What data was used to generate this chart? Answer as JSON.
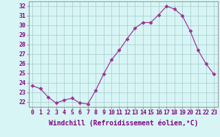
{
  "x": [
    0,
    1,
    2,
    3,
    4,
    5,
    6,
    7,
    8,
    9,
    10,
    11,
    12,
    13,
    14,
    15,
    16,
    17,
    18,
    19,
    20,
    21,
    22,
    23
  ],
  "y": [
    23.7,
    23.4,
    22.5,
    21.9,
    22.2,
    22.4,
    21.9,
    21.8,
    23.2,
    24.9,
    26.4,
    27.4,
    28.6,
    29.7,
    30.3,
    30.3,
    31.1,
    32.0,
    31.7,
    31.0,
    29.4,
    27.4,
    26.0,
    24.9
  ],
  "xlabel": "Windchill (Refroidissement éolien,°C)",
  "line_color": "#993399",
  "marker": "D",
  "marker_size": 2.5,
  "bg_color": "#d8f5f5",
  "grid_color": "#aacfcf",
  "xlim": [
    -0.5,
    23.5
  ],
  "ylim": [
    21.5,
    32.5
  ],
  "yticks": [
    22,
    23,
    24,
    25,
    26,
    27,
    28,
    29,
    30,
    31,
    32
  ],
  "xtick_labels": [
    "0",
    "1",
    "2",
    "3",
    "4",
    "5",
    "6",
    "7",
    "8",
    "9",
    "10",
    "11",
    "12",
    "13",
    "14",
    "15",
    "16",
    "17",
    "18",
    "19",
    "20",
    "21",
    "22",
    "23"
  ],
  "tick_fontsize": 6,
  "xlabel_fontsize": 7
}
